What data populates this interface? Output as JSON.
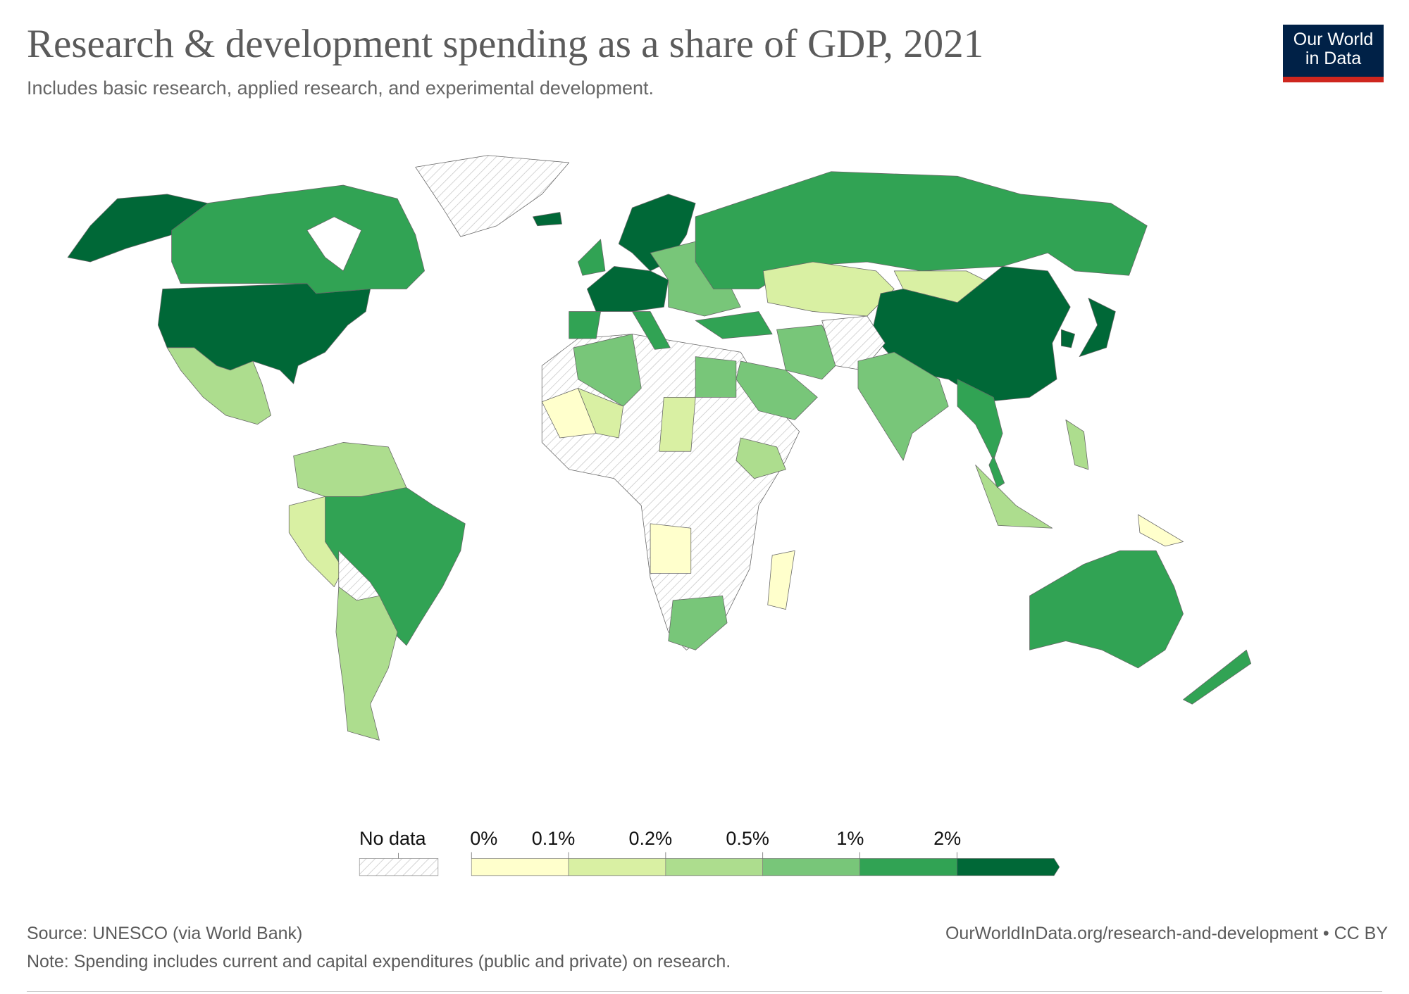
{
  "header": {
    "title": "Research & development spending as a share of GDP, 2021",
    "subtitle": "Includes basic research, applied research, and experimental development."
  },
  "logo": {
    "line1": "Our World",
    "line2": "in Data",
    "bg": "#002147",
    "accent": "#ce261e"
  },
  "legend": {
    "no_data_label": "No data",
    "tick_labels": [
      "0%",
      "0.1%",
      "0.2%",
      "0.5%",
      "1%",
      "2%"
    ],
    "colors": [
      "#ffffcc",
      "#d9f0a3",
      "#addd8e",
      "#78c679",
      "#31a354",
      "#006837"
    ]
  },
  "footer": {
    "source": "Source: UNESCO (via World Bank)",
    "url": "OurWorldInData.org/research-and-development • CC BY",
    "note": "Note: Spending includes current and capital expenditures (public and private) on research."
  },
  "chart_data": {
    "type": "choropleth",
    "year": 2021,
    "unit": "% of GDP",
    "bins": [
      "0–0.1%",
      "0.1–0.2%",
      "0.2–0.5%",
      "0.5–1%",
      "1–2%",
      ">2%"
    ],
    "regions": [
      {
        "id": "usa",
        "bin": ">2%"
      },
      {
        "id": "alaska",
        "bin": ">2%"
      },
      {
        "id": "canada",
        "bin": "1–2%"
      },
      {
        "id": "greenland",
        "bin": "no data"
      },
      {
        "id": "iceland",
        "bin": ">2%"
      },
      {
        "id": "mexico",
        "bin": "0.2–0.5%"
      },
      {
        "id": "brazil",
        "bin": "1–2%"
      },
      {
        "id": "argentina-chile",
        "bin": "0.2–0.5%"
      },
      {
        "id": "peru",
        "bin": "0.1–0.2%"
      },
      {
        "id": "colombia",
        "bin": "0.2–0.5%"
      },
      {
        "id": "bolivia",
        "bin": "no data"
      },
      {
        "id": "scandinavia",
        "bin": ">2%"
      },
      {
        "id": "western-europe",
        "bin": ">2%"
      },
      {
        "id": "iberia",
        "bin": "1–2%"
      },
      {
        "id": "italy",
        "bin": "1–2%"
      },
      {
        "id": "uk",
        "bin": "1–2%"
      },
      {
        "id": "eastern-europe",
        "bin": "0.5–1%"
      },
      {
        "id": "russia",
        "bin": "1–2%"
      },
      {
        "id": "kazakhstan",
        "bin": "0.1–0.2%"
      },
      {
        "id": "mongolia",
        "bin": "0.1–0.2%"
      },
      {
        "id": "china",
        "bin": ">2%"
      },
      {
        "id": "japan",
        "bin": ">2%"
      },
      {
        "id": "south-korea",
        "bin": ">2%"
      },
      {
        "id": "turkey",
        "bin": "1–2%"
      },
      {
        "id": "iran",
        "bin": "0.5–1%"
      },
      {
        "id": "saudi-arabia",
        "bin": "0.5–1%"
      },
      {
        "id": "afghanistan-pakistan",
        "bin": "no data"
      },
      {
        "id": "india",
        "bin": "0.5–1%"
      },
      {
        "id": "thailand",
        "bin": "1–2%"
      },
      {
        "id": "indonesia",
        "bin": "0.2–0.5%"
      },
      {
        "id": "malaysia",
        "bin": "1–2%"
      },
      {
        "id": "philippines",
        "bin": "0.2–0.5%"
      },
      {
        "id": "papua-new-guinea",
        "bin": "0–0.1%"
      },
      {
        "id": "australia",
        "bin": "1–2%"
      },
      {
        "id": "new-zealand",
        "bin": "1–2%"
      },
      {
        "id": "africa-other",
        "bin": "no data"
      },
      {
        "id": "algeria",
        "bin": "0.5–1%"
      },
      {
        "id": "egypt",
        "bin": "0.5–1%"
      },
      {
        "id": "mali",
        "bin": "0–0.1%"
      },
      {
        "id": "niger",
        "bin": "0.1–0.2%"
      },
      {
        "id": "chad",
        "bin": "0.1–0.2%"
      },
      {
        "id": "ethiopia",
        "bin": "0.2–0.5%"
      },
      {
        "id": "angola",
        "bin": "0–0.1%"
      },
      {
        "id": "south-africa",
        "bin": "0.5–1%"
      },
      {
        "id": "madagascar",
        "bin": "0–0.1%"
      }
    ]
  }
}
